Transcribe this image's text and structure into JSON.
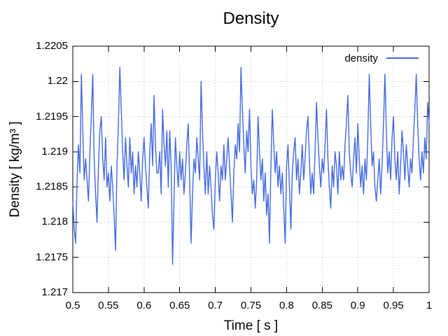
{
  "title": "Density",
  "legend": {
    "label": "density"
  },
  "axes": {
    "x": {
      "label": "Time [ s ]",
      "min": 0.5,
      "max": 1,
      "tick_labels": [
        "0.5",
        "0.55",
        "0.6",
        "0.65",
        "0.7",
        "0.75",
        "0.8",
        "0.85",
        "0.9",
        "0.95",
        "1"
      ],
      "tick_values": [
        0.5,
        0.55,
        0.6,
        0.65,
        0.7,
        0.75,
        0.8,
        0.85,
        0.9,
        0.95,
        1
      ]
    },
    "y": {
      "label": "Density [ kg/m³ ]",
      "min": 1.217,
      "max": 1.2205,
      "tick_labels": [
        "1.217",
        "1.2175",
        "1.218",
        "1.2185",
        "1.219",
        "1.2195",
        "1.22",
        "1.2205"
      ],
      "tick_values": [
        1.217,
        1.2175,
        1.218,
        1.2185,
        1.219,
        1.2195,
        1.22,
        1.2205
      ]
    }
  },
  "colors": {
    "line": "#4169e1",
    "grid": "#bdbdbd",
    "axis": "#000000",
    "text": "#000000",
    "background": "#ffffff"
  },
  "chart_data": {
    "type": "line",
    "title": "Density",
    "xlabel": "Time [ s ]",
    "ylabel": "Density [ kg/m³ ]",
    "xlim": [
      0.5,
      1.0
    ],
    "ylim": [
      1.217,
      1.2205
    ],
    "grid": true,
    "grid_style": "dotted",
    "legend_position": "top-right-inside",
    "series": [
      {
        "name": "density",
        "color": "#4169e1",
        "x_start": 0.5,
        "x_step": 0.002,
        "values": [
          1.2183,
          1.2179,
          1.2177,
          1.2186,
          1.2191,
          1.2187,
          1.2201,
          1.2193,
          1.2186,
          1.2189,
          1.2186,
          1.2183,
          1.219,
          1.2195,
          1.2201,
          1.2189,
          1.2184,
          1.218,
          1.2188,
          1.2193,
          1.2195,
          1.2189,
          1.2186,
          1.2192,
          1.2185,
          1.2187,
          1.2183,
          1.2188,
          1.2185,
          1.2181,
          1.2176,
          1.2188,
          1.2194,
          1.2202,
          1.2196,
          1.219,
          1.2186,
          1.2192,
          1.2188,
          1.2185,
          1.2192,
          1.2187,
          1.219,
          1.2184,
          1.2188,
          1.2185,
          1.219,
          1.2187,
          1.2183,
          1.2189,
          1.2192,
          1.2188,
          1.2185,
          1.2182,
          1.219,
          1.2194,
          1.2188,
          1.2198,
          1.2191,
          1.2187,
          1.2187,
          1.219,
          1.2184,
          1.2196,
          1.2191,
          1.2188,
          1.2193,
          1.2185,
          1.2193,
          1.2188,
          1.2174,
          1.2183,
          1.2192,
          1.2188,
          1.2185,
          1.219,
          1.2186,
          1.2189,
          1.2184,
          1.2187,
          1.2191,
          1.2194,
          1.2186,
          1.2177,
          1.2184,
          1.2189,
          1.2187,
          1.2192,
          1.2189,
          1.2186,
          1.22,
          1.2193,
          1.2188,
          1.2184,
          1.219,
          1.2184,
          1.2188,
          1.2185,
          1.2181,
          1.2179,
          1.2186,
          1.219,
          1.2187,
          1.2183,
          1.2188,
          1.2186,
          1.2191,
          1.2186,
          1.2189,
          1.2192,
          1.2188,
          1.2184,
          1.218,
          1.2187,
          1.2191,
          1.2189,
          1.2194,
          1.219,
          1.2202,
          1.2196,
          1.2191,
          1.2187,
          1.2193,
          1.219,
          1.2196,
          1.2188,
          1.2184,
          1.2186,
          1.2182,
          1.2186,
          1.2195,
          1.219,
          1.2186,
          1.2189,
          1.2183,
          1.2187,
          1.2181,
          1.2184,
          1.2177,
          1.2188,
          1.2196,
          1.2191,
          1.2187,
          1.219,
          1.2185,
          1.2188,
          1.2184,
          1.2187,
          1.2182,
          1.2177,
          1.2188,
          1.2191,
          1.2185,
          1.2179,
          1.2187,
          1.219,
          1.2192,
          1.2186,
          1.2189,
          1.2184,
          1.2187,
          1.2191,
          1.2186,
          1.2189,
          1.2193,
          1.2195,
          1.2189,
          1.2184,
          1.2187,
          1.2184,
          1.219,
          1.2197,
          1.2192,
          1.2188,
          1.2185,
          1.2189,
          1.2187,
          1.2191,
          1.2196,
          1.2189,
          1.2185,
          1.2182,
          1.2188,
          1.2185,
          1.219,
          1.2188,
          1.2184,
          1.219,
          1.2186,
          1.2188,
          1.2186,
          1.2191,
          1.2194,
          1.2198,
          1.219,
          1.2187,
          1.2185,
          1.2189,
          1.2192,
          1.2187,
          1.2194,
          1.2189,
          1.2185,
          1.2188,
          1.2184,
          1.2189,
          1.2186,
          1.2192,
          1.2201,
          1.2194,
          1.2188,
          1.219,
          1.2185,
          1.2183,
          1.2186,
          1.2189,
          1.2184,
          1.2188,
          1.2194,
          1.2201,
          1.2193,
          1.2187,
          1.219,
          1.2186,
          1.2192,
          1.2195,
          1.2189,
          1.2186,
          1.219,
          1.2184,
          1.2188,
          1.2193,
          1.219,
          1.2186,
          1.2191,
          1.2188,
          1.2185,
          1.2189,
          1.2187,
          1.2192,
          1.2196,
          1.2201,
          1.2194,
          1.2189,
          1.2186,
          1.219,
          1.2187,
          1.2192,
          1.2189,
          1.2197,
          1.2194
        ]
      }
    ]
  }
}
